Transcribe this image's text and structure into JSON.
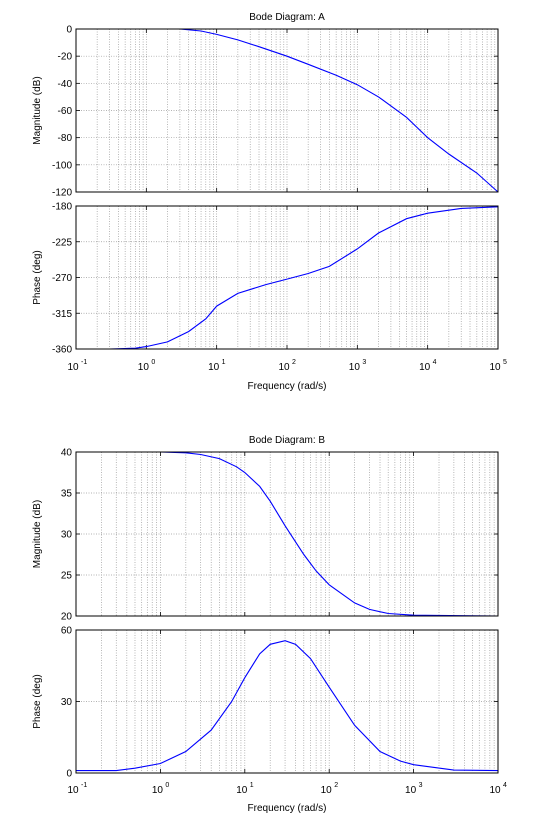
{
  "chart_data": [
    {
      "type": "line",
      "title": "Bode Diagram: A",
      "xlabel": "Frequency  (rad/s)",
      "x_scale": "log",
      "xlim": [
        0.1,
        100000
      ],
      "x_ticks": [
        0.1,
        1,
        10,
        100,
        1000,
        10000,
        100000
      ],
      "x_tick_labels": [
        {
          "base": "10",
          "exp": "-1"
        },
        {
          "base": "10",
          "exp": "0"
        },
        {
          "base": "10",
          "exp": "1"
        },
        {
          "base": "10",
          "exp": "2"
        },
        {
          "base": "10",
          "exp": "3"
        },
        {
          "base": "10",
          "exp": "4"
        },
        {
          "base": "10",
          "exp": "5"
        }
      ],
      "grid": true,
      "line_color": "#0000ff",
      "panels": [
        {
          "ylabel": "Magnitude (dB)",
          "ylim": [
            -120,
            0
          ],
          "y_ticks": [
            0,
            -20,
            -40,
            -60,
            -80,
            -100,
            -120
          ],
          "y_tick_labels": [
            "0",
            "-20",
            "-40",
            "-60",
            "-80",
            "-100",
            "-120"
          ],
          "x": [
            0.1,
            0.3,
            1,
            3,
            6,
            10,
            20,
            40,
            100,
            200,
            500,
            1000,
            2000,
            5000,
            10000,
            20000,
            50000,
            100000
          ],
          "y": [
            0,
            0,
            0,
            0,
            -1.5,
            -4,
            -8,
            -13,
            -20,
            -26,
            -34,
            -41,
            -50,
            -65,
            -80,
            -92,
            -106,
            -120
          ]
        },
        {
          "ylabel": "Phase (deg)",
          "ylim": [
            -360,
            -180
          ],
          "y_ticks": [
            -180,
            -225,
            -270,
            -315,
            -360
          ],
          "y_tick_labels": [
            "-180",
            "-225",
            "-270",
            "-315",
            "-360"
          ],
          "x": [
            0.1,
            0.3,
            0.7,
            1,
            2,
            4,
            7,
            10,
            20,
            50,
            100,
            200,
            400,
            1000,
            2000,
            5000,
            10000,
            30000,
            100000
          ],
          "y": [
            -360,
            -360,
            -359,
            -357,
            -351,
            -338,
            -322,
            -306,
            -290,
            -279,
            -272,
            -265,
            -256,
            -234,
            -214,
            -196,
            -189,
            -183,
            -181
          ]
        }
      ]
    },
    {
      "type": "line",
      "title": "Bode Diagram: B",
      "xlabel": "Frequency  (rad/s)",
      "x_scale": "log",
      "xlim": [
        0.1,
        10000
      ],
      "x_ticks": [
        0.1,
        1,
        10,
        100,
        1000,
        10000
      ],
      "x_tick_labels": [
        {
          "base": "10",
          "exp": "-1"
        },
        {
          "base": "10",
          "exp": "0"
        },
        {
          "base": "10",
          "exp": "1"
        },
        {
          "base": "10",
          "exp": "2"
        },
        {
          "base": "10",
          "exp": "3"
        },
        {
          "base": "10",
          "exp": "4"
        }
      ],
      "grid": true,
      "line_color": "#0000ff",
      "panels": [
        {
          "ylabel": "Magnitude (dB)",
          "ylim": [
            20,
            40
          ],
          "y_ticks": [
            40,
            35,
            30,
            25,
            20
          ],
          "y_tick_labels": [
            "40",
            "35",
            "30",
            "25",
            "20"
          ],
          "x": [
            0.1,
            0.5,
            1,
            2,
            3,
            5,
            8,
            10,
            15,
            20,
            30,
            50,
            70,
            100,
            200,
            300,
            500,
            1000,
            10000
          ],
          "y": [
            40,
            40,
            40,
            39.9,
            39.7,
            39.2,
            38.2,
            37.5,
            35.8,
            34,
            31,
            27.5,
            25.5,
            23.8,
            21.6,
            20.8,
            20.3,
            20.1,
            20
          ]
        },
        {
          "ylabel": "Phase (deg)",
          "ylim": [
            0,
            60
          ],
          "y_ticks": [
            60,
            30,
            0
          ],
          "y_tick_labels": [
            "60",
            "30",
            "0"
          ],
          "x": [
            0.1,
            0.3,
            0.5,
            1,
            2,
            4,
            7,
            10,
            15,
            20,
            30,
            40,
            60,
            100,
            200,
            400,
            700,
            1000,
            3000,
            10000
          ],
          "y": [
            1,
            1,
            2,
            4,
            9,
            18,
            30,
            40,
            50,
            54,
            55.5,
            54,
            48,
            36,
            20,
            9,
            5,
            3.5,
            1.2,
            1
          ]
        }
      ]
    }
  ]
}
